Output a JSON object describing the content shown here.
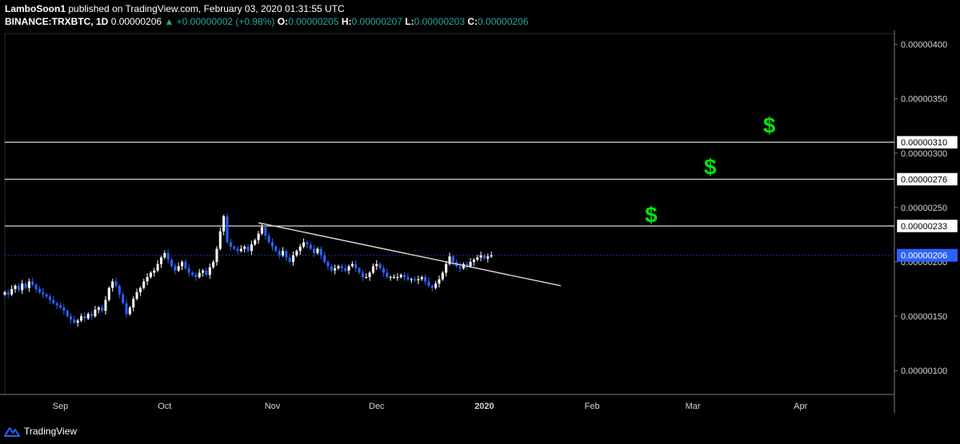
{
  "header": {
    "author": "LamboSoon1",
    "published_text": "published on TradingView.com, February 03, 2020 01:31:55 UTC",
    "symbol": "BINANCE:TRXBTC, 1D",
    "last": "0.00000206",
    "change": "▲ +0.00000002 (+0.98%)",
    "o_label": "O:",
    "o_value": "0.00000205",
    "h_label": "H:",
    "h_value": "0.00000207",
    "l_label": "L:",
    "l_value": "0.00000203",
    "c_label": "C:",
    "c_value": "0.00000206"
  },
  "footer": {
    "brand": "TradingView"
  },
  "colors": {
    "up": "#ffffff",
    "down": "#2962ff",
    "accent": "#26a69a",
    "dollar": "#00e600",
    "line": "#d9d9d9"
  },
  "chart_data": {
    "type": "candlestick",
    "x_labels": [
      "Sep",
      "Oct",
      "Nov",
      "Dec",
      "2020",
      "Feb",
      "Mar",
      "Apr"
    ],
    "y_ticks": [
      "0.00000400",
      "0.00000350",
      "0.00000300",
      "0.00000250",
      "0.00000200",
      "0.00000150",
      "0.00000100"
    ],
    "y_tick_values": [
      400,
      350,
      300,
      250,
      200,
      150,
      100
    ],
    "ylim": [
      78,
      410
    ],
    "xlim": [
      "2019-08-16",
      "2020-04-28"
    ],
    "horizontal_levels": [
      {
        "value": 310,
        "label": "0.00000310"
      },
      {
        "value": 276,
        "label": "0.00000276"
      },
      {
        "value": 233,
        "label": "0.00000233"
      }
    ],
    "current_price": {
      "value": 206,
      "label": "0.00000206"
    },
    "trendline": {
      "start": [
        "2019-10-28",
        236
      ],
      "end": [
        "2020-01-23",
        178
      ]
    },
    "annotations": [
      {
        "text": "$",
        "date": "2020-02-18",
        "value": 243
      },
      {
        "text": "$",
        "date": "2020-03-06",
        "value": 287
      },
      {
        "text": "$",
        "date": "2020-03-23",
        "value": 325
      }
    ],
    "closes": [
      172,
      170,
      175,
      178,
      174,
      180,
      176,
      182,
      179,
      175,
      172,
      170,
      168,
      165,
      162,
      160,
      158,
      155,
      150,
      147,
      144,
      146,
      150,
      148,
      152,
      150,
      156,
      158,
      155,
      165,
      176,
      182,
      178,
      170,
      162,
      152,
      158,
      166,
      172,
      176,
      182,
      186,
      190,
      192,
      198,
      204,
      208,
      202,
      196,
      192,
      196,
      200,
      194,
      190,
      188,
      186,
      190,
      192,
      188,
      195,
      200,
      212,
      228,
      242,
      218,
      214,
      212,
      210,
      212,
      214,
      210,
      216,
      220,
      226,
      232,
      224,
      218,
      214,
      210,
      206,
      210,
      204,
      200,
      206,
      210,
      214,
      218,
      216,
      212,
      208,
      212,
      206,
      200,
      196,
      192,
      194,
      196,
      194,
      192,
      196,
      198,
      194,
      190,
      186,
      186,
      190,
      196,
      198,
      194,
      190,
      186,
      186,
      186,
      186,
      188,
      186,
      184,
      184,
      183,
      184,
      186,
      182,
      178,
      176,
      180,
      184,
      190,
      198,
      205,
      200,
      196,
      194,
      198,
      196,
      200,
      202,
      204,
      206,
      203,
      205,
      206
    ]
  }
}
